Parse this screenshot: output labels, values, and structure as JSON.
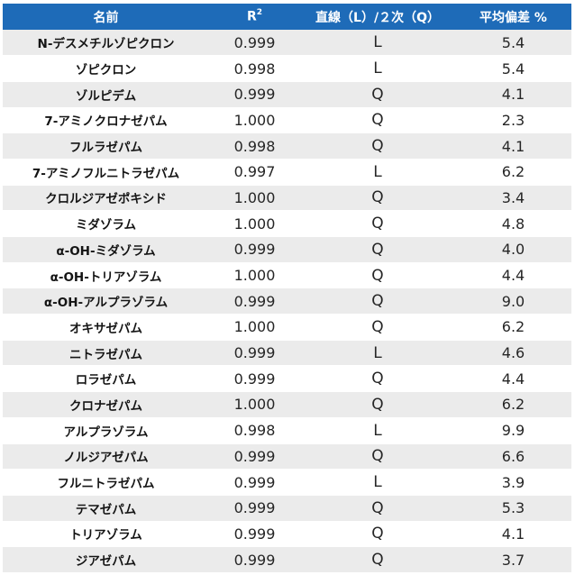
{
  "table": {
    "headers": {
      "name": "名前",
      "r2_base": "R",
      "r2_sup": "2",
      "fit": "直線（L）/２次（Q）",
      "deviation": "平均偏差 %"
    },
    "rows": [
      {
        "name": "N-デスメチルゾピクロン",
        "r2": "0.999",
        "fit": "L",
        "deviation": "5.4"
      },
      {
        "name": "ゾピクロン",
        "r2": "0.998",
        "fit": "L",
        "deviation": "5.4"
      },
      {
        "name": "ゾルピデム",
        "r2": "0.999",
        "fit": "Q",
        "deviation": "4.1"
      },
      {
        "name": "7-アミノクロナゼパム",
        "r2": "1.000",
        "fit": "Q",
        "deviation": "2.3"
      },
      {
        "name": "フルラゼパム",
        "r2": "0.998",
        "fit": "Q",
        "deviation": "4.1"
      },
      {
        "name": "7-アミノフルニトラゼパム",
        "r2": "0.997",
        "fit": "L",
        "deviation": "6.2"
      },
      {
        "name": "クロルジアゼポキシド",
        "r2": "1.000",
        "fit": "Q",
        "deviation": "3.4"
      },
      {
        "name": "ミダゾラム",
        "r2": "1.000",
        "fit": "Q",
        "deviation": "4.8"
      },
      {
        "name": "α-OH-ミダゾラム",
        "r2": "0.999",
        "fit": "Q",
        "deviation": "4.0"
      },
      {
        "name": "α-OH-トリアゾラム",
        "r2": "1.000",
        "fit": "Q",
        "deviation": "4.4"
      },
      {
        "name": "α-OH-アルプラゾラム",
        "r2": "0.999",
        "fit": "Q",
        "deviation": "9.0"
      },
      {
        "name": "オキサゼパム",
        "r2": "1.000",
        "fit": "Q",
        "deviation": "6.2"
      },
      {
        "name": "ニトラゼパム",
        "r2": "0.999",
        "fit": "L",
        "deviation": "4.6"
      },
      {
        "name": "ロラゼパム",
        "r2": "0.999",
        "fit": "Q",
        "deviation": "4.4"
      },
      {
        "name": "クロナゼパム",
        "r2": "1.000",
        "fit": "Q",
        "deviation": "6.2"
      },
      {
        "name": "アルプラゾラム",
        "r2": "0.998",
        "fit": "L",
        "deviation": "9.9"
      },
      {
        "name": "ノルジアゼパム",
        "r2": "0.999",
        "fit": "Q",
        "deviation": "6.6"
      },
      {
        "name": "フルニトラゼパム",
        "r2": "0.999",
        "fit": "L",
        "deviation": "3.9"
      },
      {
        "name": "テマゼパム",
        "r2": "0.999",
        "fit": "Q",
        "deviation": "5.3"
      },
      {
        "name": "トリアゾラム",
        "r2": "0.999",
        "fit": "Q",
        "deviation": "4.1"
      },
      {
        "name": "ジアゼパム",
        "r2": "0.999",
        "fit": "Q",
        "deviation": "3.7"
      }
    ]
  },
  "colors": {
    "header_bg": "#1e6bb8",
    "header_text": "#ffffff",
    "row_odd": "#ebebeb",
    "row_even": "#ffffff"
  }
}
